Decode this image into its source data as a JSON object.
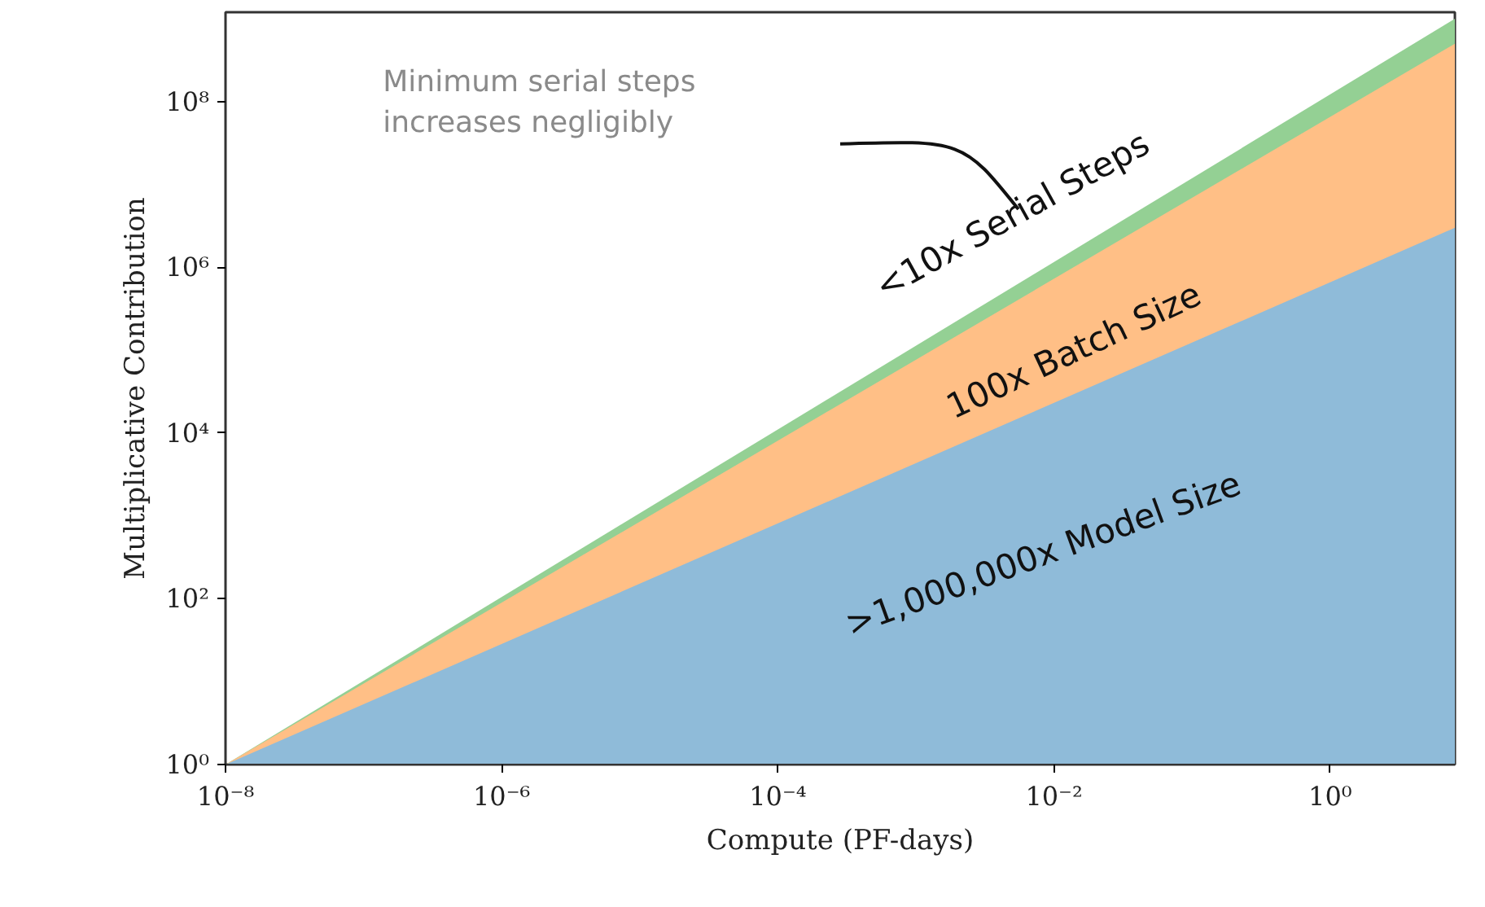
{
  "chart_data": {
    "type": "area",
    "xlabel": "Compute (PF-days)",
    "ylabel": "Multiplicative Contribution",
    "x": [
      1e-08,
      8
    ],
    "series": [
      {
        "color": "#94d094",
        "values": [
          1,
          1000000000.0
        ]
      },
      {
        "color": "#ffbf86",
        "values": [
          1,
          500000000.0
        ]
      },
      {
        "color": "#8fbbd9",
        "values": [
          1,
          3000000.0
        ]
      }
    ],
    "log": "xy",
    "grid": false,
    "xlim": [
      1e-08,
      8
    ],
    "ylim": [
      1,
      1200000000.0
    ],
    "xticks": [
      {
        "value": 1e-08,
        "label": "10⁻⁸"
      },
      {
        "value": 1e-06,
        "label": "10⁻⁶"
      },
      {
        "value": 0.0001,
        "label": "10⁻⁴"
      },
      {
        "value": 0.01,
        "label": "10⁻²"
      },
      {
        "value": 1,
        "label": "10⁰"
      }
    ],
    "yticks": [
      {
        "value": 1,
        "label": "10⁰"
      },
      {
        "value": 100,
        "label": "10²"
      },
      {
        "value": 10000,
        "label": "10⁴"
      },
      {
        "value": 1000000,
        "label": "10⁶"
      },
      {
        "value": 100000000,
        "label": "10⁸"
      }
    ],
    "annotations": [
      "<10x Serial Steps",
      "100x Batch Size",
      ">1,000,000x Model Size",
      "Minimum serial steps\nincreases negligibly"
    ]
  }
}
